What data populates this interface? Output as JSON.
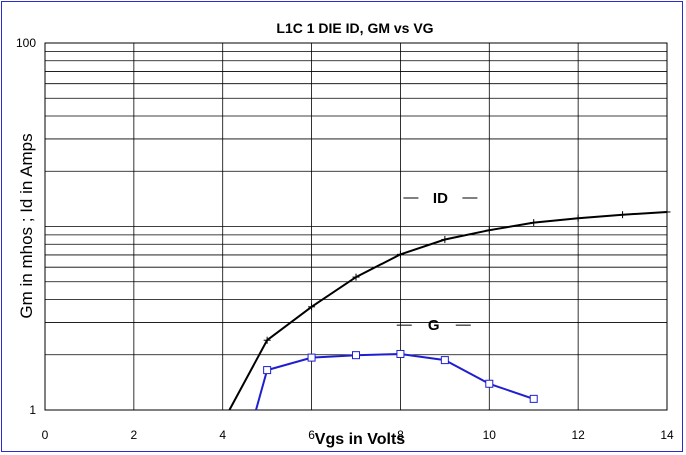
{
  "chart_data": {
    "type": "line",
    "title": "L1C  1 DIE   ID, GM vs VG",
    "xlabel": "Vgs in Volts",
    "ylabel": "Gm in  mhos ;  Id in Amps",
    "xlim": [
      0,
      14
    ],
    "ylim": [
      1,
      100
    ],
    "yscale": "log",
    "grid": true,
    "x_ticks": [
      "0",
      "2",
      "4",
      "6",
      "8",
      "10",
      "12",
      "14"
    ],
    "y_ticks": [
      "1",
      "100"
    ],
    "series": [
      {
        "name": "ID",
        "color": "#000000",
        "marker": "plus",
        "points": [
          [
            4.15,
            1.0
          ],
          [
            5,
            2.4
          ],
          [
            6,
            3.65
          ],
          [
            7,
            5.3
          ],
          [
            8,
            7.05
          ],
          [
            9,
            8.5
          ],
          [
            10,
            9.55
          ],
          [
            11,
            10.5
          ],
          [
            12,
            11.1
          ],
          [
            13,
            11.6
          ],
          [
            14,
            12.0
          ]
        ]
      },
      {
        "name": "G",
        "color": "#1f1fd0",
        "marker": "square",
        "points": [
          [
            4.75,
            1.0
          ],
          [
            5,
            1.65
          ],
          [
            6,
            1.93
          ],
          [
            7,
            1.99
          ],
          [
            8,
            2.02
          ],
          [
            9,
            1.87
          ],
          [
            10,
            1.39
          ],
          [
            11,
            1.15
          ]
        ]
      }
    ],
    "annotations": [
      {
        "text": "ID",
        "x": 8.9,
        "y": 14.3
      },
      {
        "text": "G",
        "x": 8.75,
        "y": 2.9
      }
    ]
  }
}
